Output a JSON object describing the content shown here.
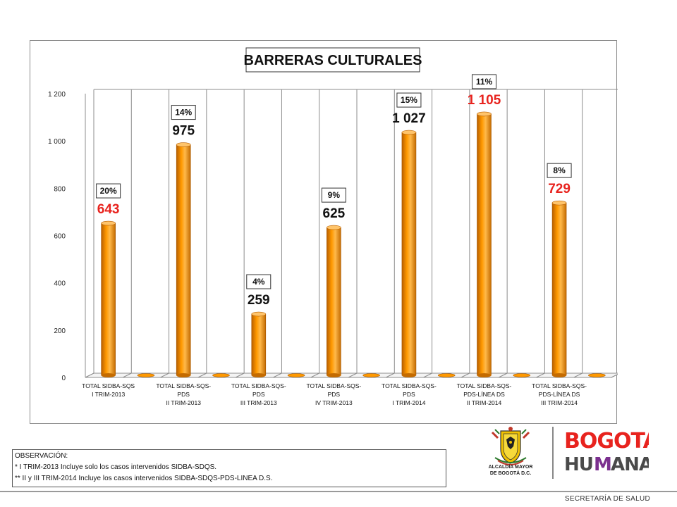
{
  "chart_data": {
    "type": "bar",
    "title": "BARRERAS CULTURALES",
    "categories": [
      [
        "TOTAL SIDBA-SQS",
        "I TRIM-2013"
      ],
      [
        "TOTAL SIDBA-SQS-",
        "PDS",
        "II TRIM-2013"
      ],
      [
        "TOTAL SIDBA-SQS-",
        "PDS",
        "III TRIM-2013"
      ],
      [
        "TOTAL SIDBA-SQS-",
        "PDS",
        "IV TRIM-2013"
      ],
      [
        "TOTAL SIDBA-SQS-",
        "PDS",
        "I TRIM-2014"
      ],
      [
        "TOTAL SIDBA-SQS-",
        "PDS-LÍNEA DS",
        "II TRIM-2014"
      ],
      [
        "TOTAL SIDBA-SQS-",
        "PDS-LÍNEA DS",
        "III TRIM-2014"
      ]
    ],
    "values": [
      643,
      975,
      259,
      625,
      1027,
      1105,
      729
    ],
    "value_labels": [
      "643",
      "975",
      "259",
      "625",
      "1 027",
      "1 105",
      "729"
    ],
    "value_label_colors": [
      "#e8231e",
      "#111111",
      "#111111",
      "#111111",
      "#111111",
      "#e8231e",
      "#e8231e"
    ],
    "percent_labels": [
      "20%",
      "14%",
      "4%",
      "9%",
      "15%",
      "11%",
      "8%"
    ],
    "yticks": [
      "0",
      "200",
      "400",
      "600",
      "800",
      "1 000",
      "1 200"
    ],
    "ylim": [
      0,
      1200
    ],
    "bar_color": "#ff9900",
    "grid": "vertical",
    "xlabel": "",
    "ylabel": ""
  },
  "observation": {
    "heading": "OBSERVACIÓN:",
    "line1": "* I TRIM-2013 Incluye solo los casos intervenidos SIDBA-SDQS.",
    "line2": "** II y III TRIM-2014 Incluye los casos intervenidos SIDBA-SDQS-PDS-LINEA D.S."
  },
  "footer": {
    "text": "SECRETARÍA DE SALUD"
  },
  "logos": {
    "alcaldia_line1": "ALCALDÍA MAYOR",
    "alcaldia_line2": "DE BOGOTÁ D.C.",
    "bogota": "BOGOTÁ HUMANA"
  }
}
